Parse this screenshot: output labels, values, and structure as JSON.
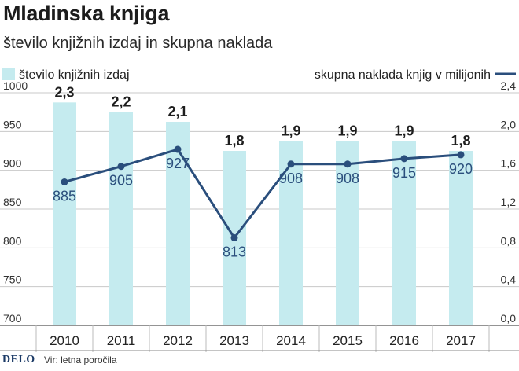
{
  "title": "Mladinska knjiga",
  "subtitle": "število knjižnih izdaj in skupna naklada",
  "legend": {
    "bars": "število knjižnih izdaj",
    "line": "skupna naklada knjig v milijonih"
  },
  "source": {
    "logo": "DELO",
    "text": "Vir: letna poročila"
  },
  "colors": {
    "bar": "#c5ebef",
    "line": "#2a4e7c",
    "grid": "#c8c8c8",
    "text": "#222222"
  },
  "chart_data": {
    "type": "bar",
    "categories": [
      "2010",
      "2011",
      "2012",
      "2013",
      "2014",
      "2015",
      "2016",
      "2017"
    ],
    "series": [
      {
        "name": "število knjižnih izdaj",
        "type": "bar",
        "axis": "right",
        "values": [
          2.3,
          2.2,
          2.1,
          1.8,
          1.9,
          1.9,
          1.9,
          1.8
        ],
        "labels": [
          "2,3",
          "2,2",
          "2,1",
          "1,8",
          "1,9",
          "1,9",
          "1,9",
          "1,8"
        ]
      },
      {
        "name": "skupna naklada knjig v milijonih",
        "type": "line",
        "axis": "left",
        "values": [
          885,
          905,
          927,
          813,
          908,
          908,
          915,
          920
        ],
        "labels": [
          "885",
          "905",
          "927",
          "813",
          "908",
          "908",
          "915",
          "920"
        ]
      }
    ],
    "y_left": {
      "ticks": [
        700,
        750,
        800,
        850,
        900,
        950,
        1000
      ],
      "tick_labels": [
        "700",
        "750",
        "800",
        "850",
        "900",
        "950",
        "1000"
      ],
      "ylim": [
        700,
        1000
      ]
    },
    "y_right": {
      "ticks": [
        0,
        0.4,
        0.8,
        1.2,
        1.6,
        2.0,
        2.4
      ],
      "tick_labels": [
        "0,0",
        "0,4",
        "0,8",
        "1,2",
        "1,6",
        "2,0",
        "2,4"
      ],
      "ylim": [
        0,
        2.4
      ]
    },
    "grid": true,
    "legend_position": "top"
  }
}
